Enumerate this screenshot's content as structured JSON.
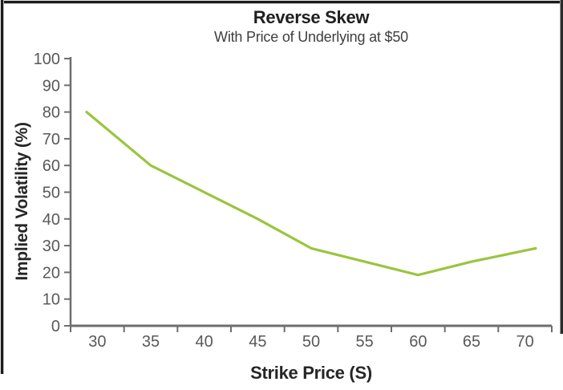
{
  "chart_data": {
    "type": "line",
    "title": "Reverse Skew",
    "subtitle": "With Price of Underlying at $50",
    "xlabel": "Strike Price (S)",
    "ylabel": "Implied Volatility (%)",
    "x": [
      29,
      35,
      40,
      45,
      50,
      55,
      60,
      65,
      71
    ],
    "values": [
      80,
      60,
      50,
      40,
      29,
      24,
      19,
      24,
      29
    ],
    "x_ticks": [
      30,
      35,
      40,
      45,
      50,
      55,
      60,
      65,
      70
    ],
    "y_ticks": [
      0,
      10,
      20,
      30,
      40,
      50,
      60,
      70,
      80,
      90,
      100
    ],
    "xlim": [
      27.5,
      72.5
    ],
    "ylim": [
      0,
      100
    ],
    "grid": false,
    "legend": null,
    "line_color": "#9ac53e",
    "axis_color": "#6e6e6e",
    "tick_label_color": "#595959"
  }
}
